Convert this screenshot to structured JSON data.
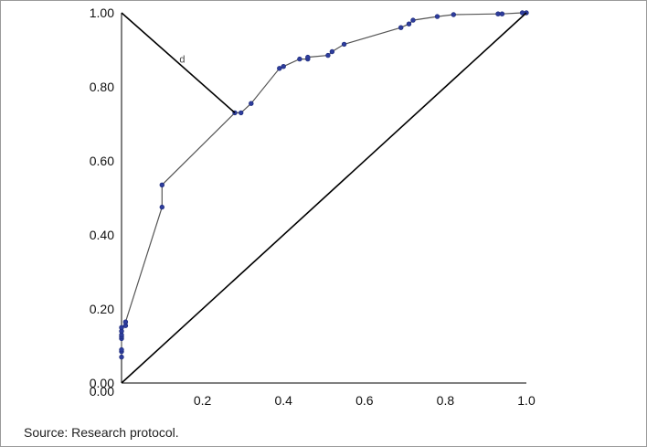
{
  "chart_data": {
    "type": "line",
    "title": "",
    "xlabel": "",
    "ylabel": "",
    "xlim": [
      0,
      1
    ],
    "ylim": [
      0,
      1
    ],
    "x_ticks": [
      "0.2",
      "0.4",
      "0.6",
      "0.8",
      "1.0"
    ],
    "y_ticks": [
      "0.00",
      "0.20",
      "0.40",
      "0.60",
      "0.80",
      "1.00"
    ],
    "grid": false,
    "legend": "none",
    "series": [
      {
        "style": "line-with-markers",
        "color": "#555555",
        "marker_color": "#2e3d9c",
        "x": [
          0,
          0,
          0,
          0,
          0,
          0,
          0,
          0,
          0.01,
          0.01,
          0.1,
          0.1,
          0.28,
          0.295,
          0.32,
          0.39,
          0.4,
          0.44,
          0.46,
          0.46,
          0.51,
          0.52,
          0.55,
          0.69,
          0.71,
          0.72,
          0.78,
          0.82,
          0.93,
          0.94,
          0.99,
          1.0
        ],
        "y": [
          0.07,
          0.085,
          0.09,
          0.12,
          0.125,
          0.13,
          0.14,
          0.15,
          0.155,
          0.165,
          0.475,
          0.535,
          0.73,
          0.73,
          0.755,
          0.85,
          0.855,
          0.875,
          0.875,
          0.88,
          0.885,
          0.895,
          0.915,
          0.96,
          0.97,
          0.98,
          0.99,
          0.995,
          0.997,
          0.997,
          1.0,
          1.0
        ]
      },
      {
        "style": "line",
        "color": "#000000",
        "x": [
          0,
          1
        ],
        "y": [
          0,
          1
        ]
      },
      {
        "style": "line",
        "color": "#000000",
        "x": [
          0,
          0.28
        ],
        "y": [
          1,
          0.73
        ]
      }
    ],
    "annotations": [
      {
        "text": "d",
        "x": 0.15,
        "y": 0.865
      }
    ]
  },
  "source": "Source: Research protocol."
}
